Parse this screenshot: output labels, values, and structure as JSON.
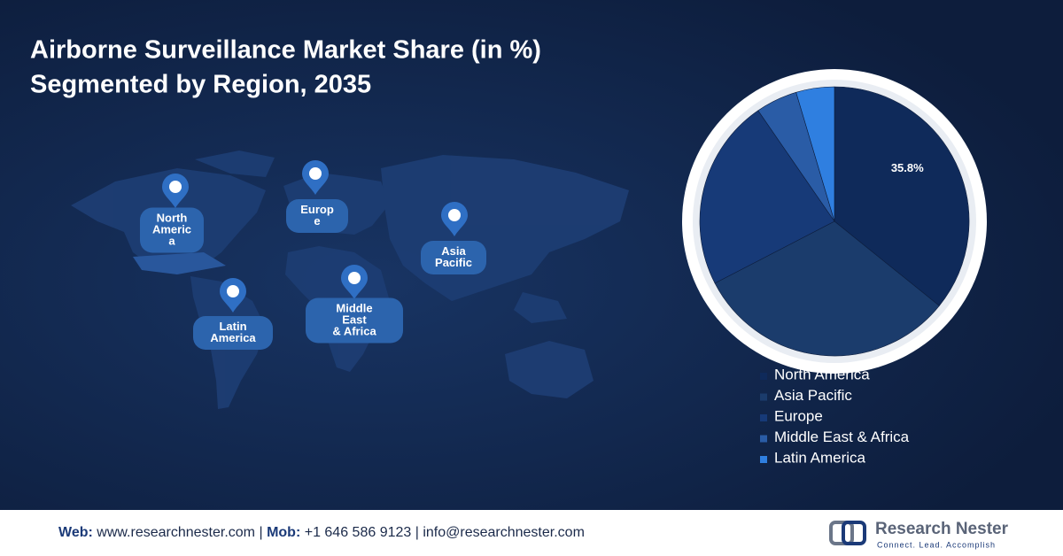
{
  "chart_data": {
    "type": "pie",
    "title": [
      "Airborne Surveillance Market Share (in %)",
      "Segmented by Region, 2035"
    ],
    "categories": [
      "North America",
      "Asia Pacific",
      "Europe",
      "Middle East & Africa",
      "Latin America"
    ],
    "values": [
      35.8,
      31.6,
      23,
      5,
      4.6
    ],
    "value_labels": [
      "35.8%",
      null,
      null,
      null,
      null
    ],
    "colors": [
      "#0f2a5a",
      "#1b3c6c",
      "#173a78",
      "#2a5ca6",
      "#2f7fe0"
    ],
    "map_labels": [
      [
        "North",
        "Americ",
        "a"
      ],
      [
        "Europ",
        "e"
      ],
      [
        "Asia",
        "Pacific"
      ],
      [
        "Latin",
        "America"
      ],
      [
        "Middle",
        "East",
        "& Africa"
      ]
    ]
  },
  "footer": {
    "web_label": "Web:",
    "web": "www.researchnester.com",
    "separator": "|",
    "mob_label": "Mob:",
    "mob": "+1 646 586 9123",
    "email": "info@researchnester.com"
  },
  "logo": {
    "name": "Research Nester",
    "tagline": "Connect. Lead. Accomplish"
  }
}
